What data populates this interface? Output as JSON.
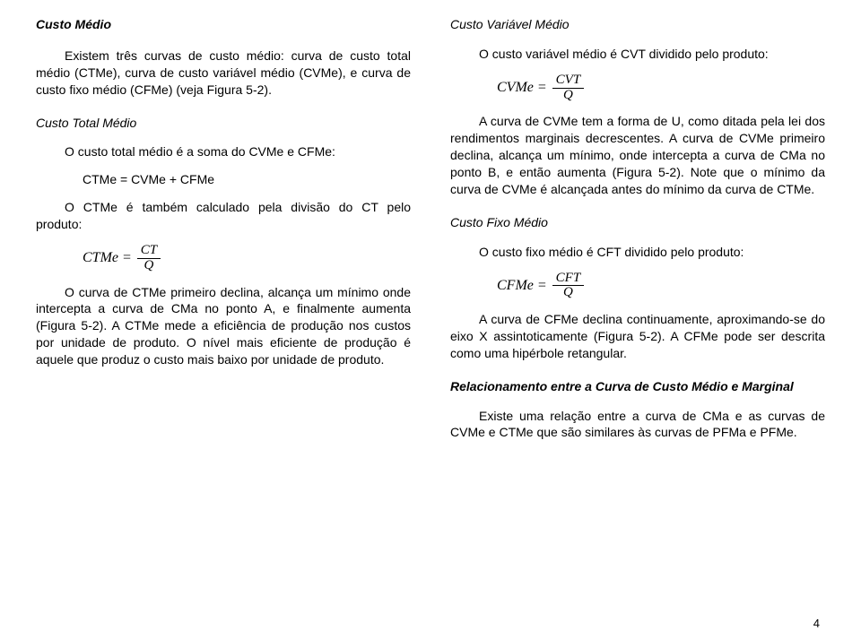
{
  "left": {
    "h1": "Custo Médio",
    "p1": "Existem três curvas de custo médio: curva de custo total médio (CTMe), curva de custo variável médio (CVMe), e curva de custo fixo médio (CFMe) (veja Figura 5-2).",
    "sh1": "Custo Total Médio",
    "p2": "O custo total médio é a soma do CVMe e CFMe:",
    "eq1": "CTMe = CVMe + CFMe",
    "p3": "O CTMe é também calculado pela divisão do CT pelo produto:",
    "formula1": {
      "lhs": "CTMe =",
      "num": "CT",
      "den": "Q"
    },
    "p4": "O curva de CTMe primeiro declina, alcança um mínimo onde intercepta a curva de CMa no ponto A, e finalmente aumenta (Figura 5-2). A CTMe mede a eficiência de produção nos custos por unidade de produto. O nível mais eficiente de produção é aquele que produz o custo mais baixo por unidade de produto."
  },
  "right": {
    "h1": "Custo Variável Médio",
    "p1": "O custo variável médio é CVT dividido pelo produto:",
    "formula1": {
      "lhs": "CVMe =",
      "num": "CVT",
      "den": "Q"
    },
    "p2": "A curva de CVMe tem a forma de U, como ditada pela lei dos rendimentos marginais decrescentes. A curva de CVMe primeiro declina, alcança um mínimo, onde intercepta a curva de CMa no ponto B, e então aumenta (Figura 5-2). Note que o mínimo da curva de CVMe é alcançada antes do mínimo da curva de CTMe.",
    "sh1": "Custo Fixo Médio",
    "p3": "O custo fixo médio é CFT dividido pelo produto:",
    "formula2": {
      "lhs": "CFMe =",
      "num": "CFT",
      "den": "Q"
    },
    "p4": "A curva de CFMe declina continuamente, aproximando-se do eixo X assintoticamente (Figura 5-2). A CFMe pode ser descrita como uma hipérbole retangular.",
    "sh2": "Relacionamento entre a Curva de Custo Médio e Marginal",
    "p5": "Existe uma relação entre a curva de CMa e as curvas de CVMe e CTMe que são similares às curvas de PFMa e PFMe."
  },
  "pageNumber": "4"
}
